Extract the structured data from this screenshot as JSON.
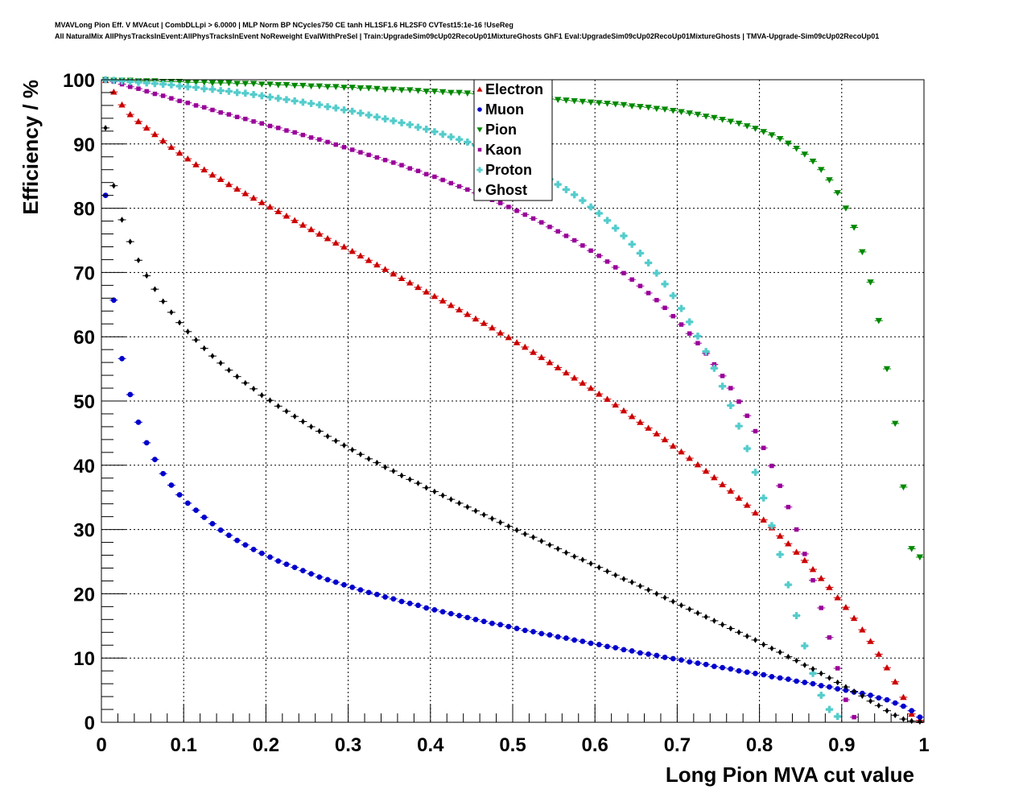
{
  "header": {
    "line1": "MVAVLong Pion Eff. V MVAcut | CombDLLpi > 6.0000 | MLP Norm BP NCycles750 CE tanh HL1SF1.6 HL2SF0 CVTest15:1e-16 !UseReg",
    "line2": "All NaturalMix AllPhysTracksInEvent:AllPhysTracksInEvent NoReweight EvalWithPreSel | Train:UpgradeSim09cUp02RecoUp01MixtureGhosts GhF1 Eval:UpgradeSim09cUp02RecoUp01MixtureGhosts | TMVA-Upgrade-Sim09cUp02RecoUp01"
  },
  "chart_data": {
    "type": "scatter",
    "xlabel": "Long Pion MVA cut value",
    "ylabel": "Efficiency / %",
    "xlim": [
      0,
      1
    ],
    "ylim": [
      0,
      100
    ],
    "x_ticks": [
      "0",
      "0.1",
      "0.2",
      "0.3",
      "0.4",
      "0.5",
      "0.6",
      "0.7",
      "0.8",
      "0.9",
      "1"
    ],
    "y_ticks": [
      "0",
      "10",
      "20",
      "30",
      "40",
      "50",
      "60",
      "70",
      "80",
      "90",
      "100"
    ],
    "grid": true,
    "legend_position": "top-center",
    "x_step": 0.01,
    "series": [
      {
        "name": "Electron",
        "color": "#cc0000",
        "marker": "triangle-up",
        "values": [
          99.9,
          98.1,
          96.1,
          94.6,
          93.5,
          92.5,
          91.5,
          90.5,
          89.5,
          88.6,
          87.7,
          86.8,
          86.0,
          85.2,
          84.5,
          83.7,
          83.0,
          82.3,
          81.6,
          80.9,
          80.2,
          79.5,
          78.8,
          78.1,
          77.4,
          76.7,
          76.0,
          75.3,
          74.6,
          74.0,
          73.3,
          72.6,
          71.9,
          71.2,
          70.5,
          69.8,
          69.1,
          68.4,
          67.7,
          67.0,
          66.3,
          65.6,
          64.9,
          64.2,
          63.5,
          62.8,
          62.1,
          61.4,
          60.6,
          59.9,
          59.1,
          58.4,
          57.6,
          56.8,
          56.0,
          55.2,
          54.4,
          53.6,
          52.8,
          52.0,
          51.1,
          50.3,
          49.4,
          48.5,
          47.6,
          46.7,
          45.8,
          44.9,
          44.0,
          43.0,
          42.1,
          41.1,
          40.1,
          39.1,
          38.1,
          37.0,
          36.0,
          34.9,
          33.8,
          32.6,
          31.5,
          30.3,
          29.0,
          27.8,
          26.5,
          25.2,
          23.8,
          22.4,
          21.0,
          19.4,
          17.9,
          16.2,
          14.4,
          12.6,
          10.6,
          8.5,
          6.3,
          3.9,
          1.3,
          0.3
        ]
      },
      {
        "name": "Muon",
        "color": "#0000cc",
        "marker": "circle",
        "values": [
          82.0,
          65.7,
          56.6,
          51.0,
          46.7,
          43.5,
          40.9,
          38.7,
          36.9,
          35.4,
          34.1,
          33.0,
          31.9,
          30.9,
          29.9,
          29.1,
          28.3,
          27.6,
          26.9,
          26.3,
          25.7,
          25.1,
          24.6,
          24.1,
          23.6,
          23.1,
          22.6,
          22.2,
          21.8,
          21.4,
          21.0,
          20.6,
          20.2,
          19.9,
          19.5,
          19.2,
          18.8,
          18.5,
          18.2,
          17.8,
          17.5,
          17.2,
          16.9,
          16.6,
          16.3,
          16.0,
          15.7,
          15.4,
          15.2,
          14.9,
          14.6,
          14.3,
          14.1,
          13.8,
          13.6,
          13.3,
          13.1,
          12.8,
          12.6,
          12.3,
          12.1,
          11.8,
          11.6,
          11.3,
          11.1,
          10.8,
          10.6,
          10.4,
          10.1,
          9.9,
          9.7,
          9.4,
          9.2,
          9.0,
          8.7,
          8.5,
          8.3,
          8.0,
          7.8,
          7.6,
          7.4,
          7.1,
          6.9,
          6.7,
          6.4,
          6.2,
          6.0,
          5.7,
          5.5,
          5.2,
          5.0,
          4.7,
          4.5,
          4.2,
          3.8,
          3.5,
          3.0,
          2.5,
          1.8,
          0.8
        ]
      },
      {
        "name": "Pion",
        "color": "#008800",
        "marker": "triangle-down",
        "values": [
          100.0,
          99.9,
          99.9,
          99.9,
          99.8,
          99.8,
          99.8,
          99.7,
          99.7,
          99.7,
          99.6,
          99.6,
          99.6,
          99.5,
          99.5,
          99.5,
          99.4,
          99.4,
          99.4,
          99.3,
          99.3,
          99.2,
          99.2,
          99.1,
          99.1,
          99.0,
          99.0,
          98.9,
          98.9,
          98.8,
          98.8,
          98.7,
          98.7,
          98.6,
          98.5,
          98.5,
          98.4,
          98.4,
          98.3,
          98.2,
          98.2,
          98.1,
          98.0,
          98.0,
          97.9,
          97.8,
          97.7,
          97.7,
          97.6,
          97.5,
          97.4,
          97.3,
          97.2,
          97.1,
          97.0,
          96.9,
          96.8,
          96.7,
          96.6,
          96.5,
          96.4,
          96.3,
          96.2,
          96.1,
          95.9,
          95.8,
          95.7,
          95.5,
          95.4,
          95.2,
          95.0,
          94.8,
          94.6,
          94.3,
          94.1,
          93.8,
          93.5,
          93.2,
          92.8,
          92.4,
          91.9,
          91.4,
          90.8,
          90.1,
          89.3,
          88.4,
          87.3,
          86.0,
          84.4,
          82.4,
          80.0,
          77.0,
          73.2,
          68.5,
          62.5,
          55.0,
          46.5,
          36.6,
          27.0,
          25.7
        ]
      },
      {
        "name": "Kaon",
        "color": "#990099",
        "marker": "square",
        "values": [
          100.0,
          99.7,
          99.3,
          98.9,
          98.6,
          98.2,
          97.8,
          97.5,
          97.1,
          96.7,
          96.4,
          96.0,
          95.7,
          95.3,
          94.9,
          94.6,
          94.2,
          93.9,
          93.5,
          93.2,
          92.8,
          92.5,
          92.1,
          91.8,
          91.4,
          91.0,
          90.7,
          90.3,
          89.9,
          89.5,
          89.1,
          88.7,
          88.3,
          87.9,
          87.5,
          87.1,
          86.7,
          86.2,
          85.8,
          85.3,
          84.9,
          84.4,
          83.9,
          83.4,
          82.9,
          82.4,
          81.9,
          81.3,
          80.8,
          80.2,
          79.6,
          79.0,
          78.4,
          77.8,
          77.1,
          76.4,
          75.7,
          75.0,
          74.2,
          73.4,
          72.6,
          71.7,
          70.8,
          69.9,
          68.9,
          67.9,
          66.8,
          65.7,
          64.5,
          63.2,
          61.9,
          60.5,
          59.0,
          57.4,
          55.7,
          53.9,
          52.0,
          49.9,
          47.7,
          45.3,
          42.7,
          39.9,
          36.8,
          33.5,
          30.0,
          26.2,
          22.1,
          17.8,
          13.2,
          8.4,
          3.5,
          0.8
        ]
      },
      {
        "name": "Proton",
        "color": "#55cccc",
        "marker": "cross",
        "values": [
          100.0,
          99.9,
          99.8,
          99.7,
          99.6,
          99.5,
          99.4,
          99.3,
          99.2,
          99.0,
          98.9,
          98.8,
          98.6,
          98.5,
          98.3,
          98.2,
          98.0,
          97.9,
          97.7,
          97.5,
          97.3,
          97.1,
          96.9,
          96.7,
          96.5,
          96.3,
          96.1,
          95.8,
          95.6,
          95.3,
          95.1,
          94.8,
          94.5,
          94.2,
          93.9,
          93.6,
          93.3,
          93.0,
          92.6,
          92.3,
          91.9,
          91.5,
          91.1,
          90.7,
          90.3,
          89.8,
          89.3,
          88.8,
          88.3,
          87.7,
          87.1,
          86.5,
          85.9,
          85.2,
          84.5,
          83.7,
          82.9,
          82.1,
          81.2,
          80.2,
          79.2,
          78.1,
          76.9,
          75.7,
          74.4,
          73.0,
          71.5,
          69.9,
          68.2,
          66.4,
          64.4,
          62.3,
          60.1,
          57.7,
          55.1,
          52.3,
          49.3,
          46.1,
          42.6,
          38.9,
          34.9,
          30.6,
          26.1,
          21.4,
          16.6,
          11.9,
          7.6,
          4.2,
          2.0,
          0.9
        ]
      },
      {
        "name": "Ghost",
        "color": "#000000",
        "marker": "diamond",
        "values": [
          92.5,
          83.5,
          78.2,
          74.8,
          71.9,
          69.5,
          67.4,
          65.5,
          63.8,
          62.2,
          60.8,
          59.5,
          58.2,
          57.0,
          55.9,
          54.8,
          53.8,
          52.8,
          51.9,
          50.9,
          50.1,
          49.2,
          48.4,
          47.6,
          46.8,
          46.0,
          45.3,
          44.5,
          43.8,
          43.1,
          42.4,
          41.7,
          41.0,
          40.4,
          39.7,
          39.1,
          38.4,
          37.8,
          37.2,
          36.5,
          35.9,
          35.3,
          34.7,
          34.1,
          33.5,
          32.9,
          32.3,
          31.7,
          31.1,
          30.5,
          29.9,
          29.3,
          28.8,
          28.2,
          27.6,
          27.0,
          26.4,
          25.8,
          25.3,
          24.7,
          24.1,
          23.5,
          22.9,
          22.3,
          21.8,
          21.2,
          20.6,
          20.0,
          19.4,
          18.8,
          18.2,
          17.6,
          17.0,
          16.4,
          15.8,
          15.2,
          14.6,
          14.0,
          13.4,
          12.8,
          12.1,
          11.5,
          10.9,
          10.2,
          9.6,
          8.9,
          8.3,
          7.6,
          6.9,
          6.2,
          5.5,
          4.8,
          4.1,
          3.3,
          2.6,
          1.8,
          1.1,
          0.5,
          0.2,
          0.1
        ]
      }
    ]
  }
}
